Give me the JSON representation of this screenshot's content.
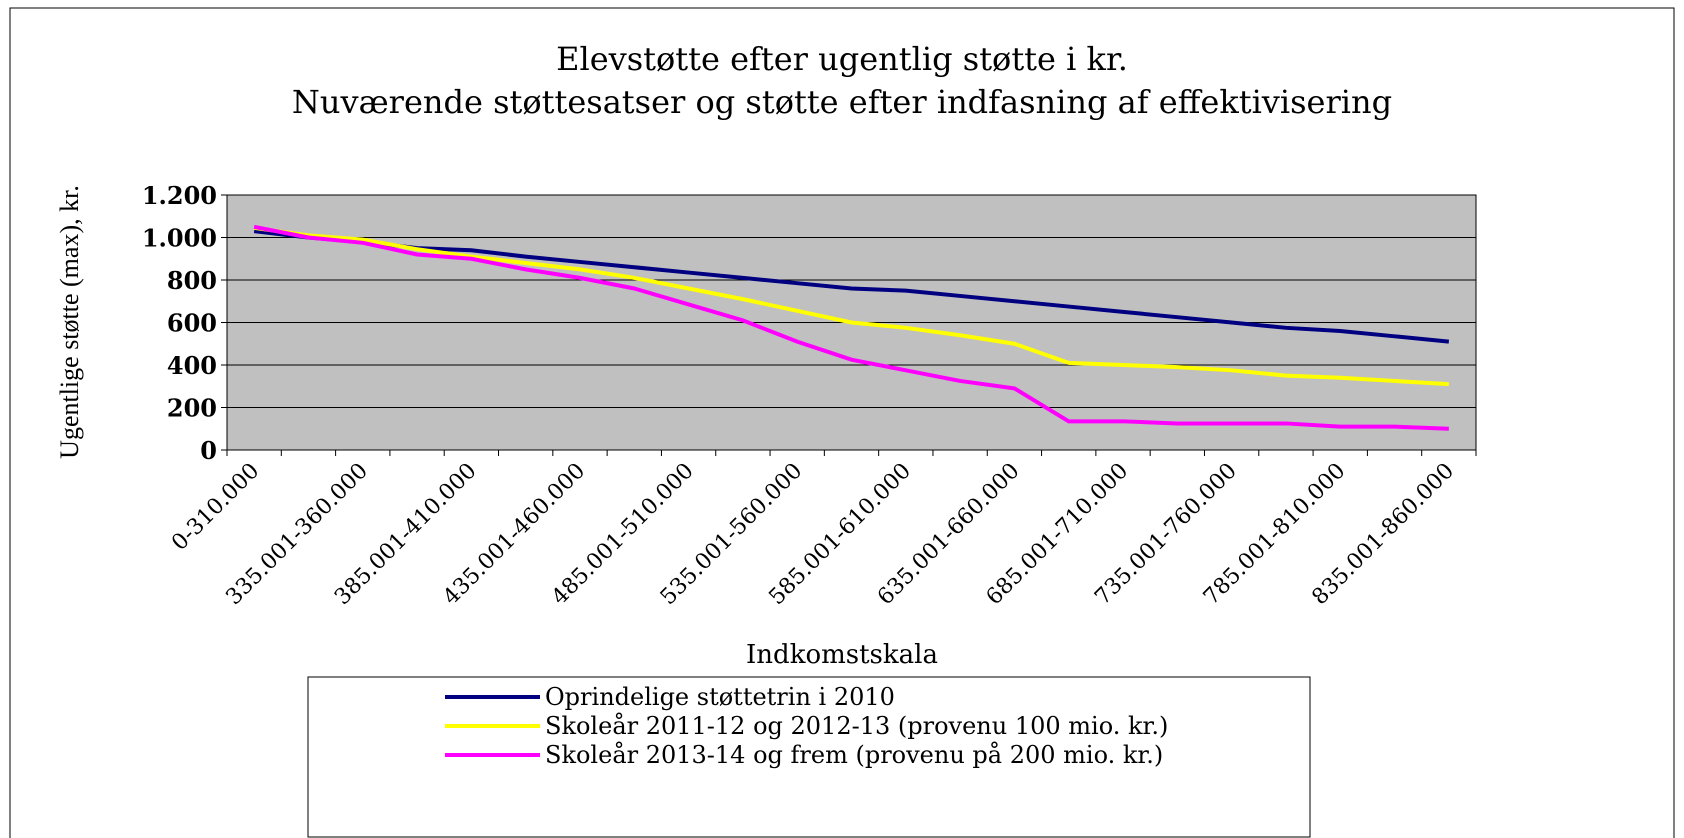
{
  "chart_data": {
    "type": "line",
    "title": "Elevstøtte efter ugentlig støtte i kr.",
    "subtitle": "Nuværende støttesatser og støtte efter indfasning af effektivisering",
    "x_label": "Indkomstskala",
    "y_label": "Ugentlige støtte (max), kr.",
    "categories": [
      "0-310.000",
      null,
      "335.001-360.000",
      null,
      "385.001-410.000",
      null,
      "435.001-460.000",
      null,
      "485.001-510.000",
      null,
      "535.001-560.000",
      null,
      "585.001-610.000",
      null,
      "635.001-660.000",
      null,
      "685.001-710.000",
      null,
      "735.001-760.000",
      null,
      "785.001-810.000",
      null,
      "835.001-860.000"
    ],
    "series": [
      {
        "name": "Oprindelige støttetrin i 2010",
        "color": "#000080",
        "values": [
          1030,
          1000,
          980,
          950,
          940,
          910,
          885,
          860,
          835,
          810,
          785,
          760,
          750,
          725,
          700,
          675,
          650,
          625,
          600,
          575,
          560,
          535,
          510
        ]
      },
      {
        "name": "Skoleår 2011-12 og 2012-13 (provenu 100 mio. kr.)",
        "color": "#ffff00",
        "values": [
          1045,
          1010,
          990,
          945,
          910,
          880,
          850,
          810,
          760,
          710,
          655,
          600,
          575,
          540,
          500,
          410,
          400,
          390,
          375,
          350,
          340,
          325,
          310
        ]
      },
      {
        "name": "Skoleår 2013-14 og frem (provenu på 200 mio. kr.)",
        "color": "#ff00ff",
        "values": [
          1050,
          1000,
          975,
          920,
          900,
          850,
          810,
          760,
          685,
          610,
          510,
          425,
          375,
          325,
          290,
          135,
          135,
          125,
          125,
          125,
          110,
          110,
          100
        ]
      }
    ],
    "ylim": [
      0,
      1200
    ],
    "yticks": [
      0,
      200,
      400,
      600,
      800,
      {
        "value": 1000,
        "label": "1.000"
      },
      {
        "value": 1200,
        "label": "1.200"
      }
    ],
    "grid": true,
    "plot_background": "#c0c0c0"
  }
}
